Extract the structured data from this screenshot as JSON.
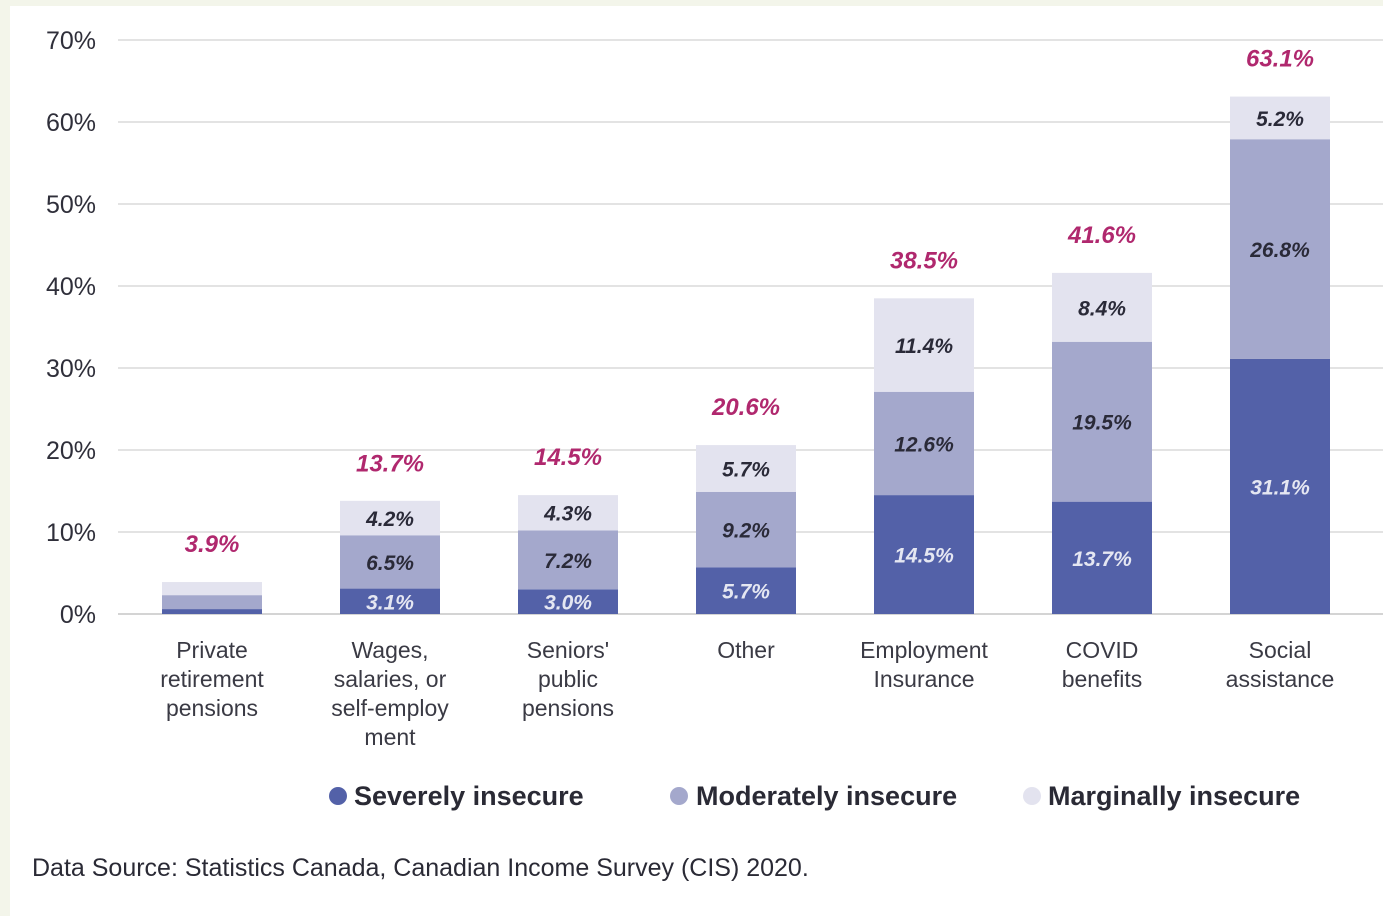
{
  "source_text": "Data Source: Statistics Canada, Canadian Income Survey (CIS) 2020.",
  "colors": {
    "severe": "#5361a8",
    "moderate": "#a4a8cc",
    "marginal": "#e3e3ef",
    "total_label": "#b0286e",
    "grid": "#e3e3e3"
  },
  "chart_data": {
    "type": "bar",
    "stacked": true,
    "categories": [
      [
        "Private",
        "retirement",
        "pensions"
      ],
      [
        "Wages,",
        "salaries, or",
        "self-employ",
        "ment"
      ],
      [
        "Seniors'",
        "public",
        "pensions"
      ],
      [
        "Other"
      ],
      [
        "Employment",
        "Insurance"
      ],
      [
        "COVID",
        "benefits"
      ],
      [
        "Social",
        "assistance"
      ]
    ],
    "series": [
      {
        "name": "Severely insecure",
        "color": "#5361a8",
        "values": [
          0.6,
          3.1,
          3.0,
          5.7,
          14.5,
          13.7,
          31.1
        ],
        "labels": [
          "",
          "3.1%",
          "3.0%",
          "5.7%",
          "14.5%",
          "13.7%",
          "31.1%"
        ]
      },
      {
        "name": "Moderately insecure",
        "color": "#a4a8cc",
        "values": [
          1.7,
          6.5,
          7.2,
          9.2,
          12.6,
          19.5,
          26.8
        ],
        "labels": [
          "",
          "6.5%",
          "7.2%",
          "9.2%",
          "12.6%",
          "19.5%",
          "26.8%"
        ]
      },
      {
        "name": "Marginally insecure",
        "color": "#e3e3ef",
        "values": [
          1.6,
          4.2,
          4.3,
          5.7,
          11.4,
          8.4,
          5.2
        ],
        "labels": [
          "",
          "4.2%",
          "4.3%",
          "5.7%",
          "11.4%",
          "8.4%",
          "5.2%"
        ]
      }
    ],
    "totals": [
      3.9,
      13.7,
      14.5,
      20.6,
      38.5,
      41.6,
      63.1
    ],
    "total_labels": [
      "3.9%",
      "13.7%",
      "14.5%",
      "20.6%",
      "38.5%",
      "41.6%",
      "63.1%"
    ],
    "ylim": [
      0,
      70
    ],
    "yticks": [
      0,
      10,
      20,
      30,
      40,
      50,
      60,
      70
    ],
    "ytick_labels": [
      "0%",
      "10%",
      "20%",
      "30%",
      "40%",
      "50%",
      "60%",
      "70%"
    ],
    "grid": true,
    "legend_position": "bottom"
  }
}
